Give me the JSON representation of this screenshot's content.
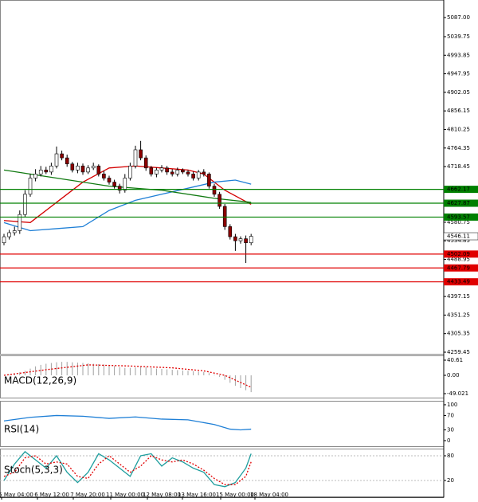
{
  "chart_data": {
    "type": "candlestick",
    "candles": {
      "open": [
        4530,
        4545,
        4555,
        4560,
        4600,
        4650,
        4690,
        4700,
        4710,
        4705,
        4720,
        4750,
        4740,
        4725,
        4710,
        4720,
        4705,
        4715,
        4720,
        4700,
        4690,
        4680,
        4670,
        4660,
        4690,
        4720,
        4760,
        4740,
        4715,
        4700,
        4710,
        4715,
        4705,
        4700,
        4710,
        4705,
        4700,
        4690,
        4705,
        4700,
        4670,
        4650,
        4620,
        4570,
        4545,
        4535,
        4540,
        4530
      ],
      "high": [
        4552,
        4562,
        4570,
        4610,
        4660,
        4700,
        4712,
        4720,
        4718,
        4728,
        4768,
        4758,
        4748,
        4730,
        4728,
        4726,
        4722,
        4728,
        4724,
        4708,
        4696,
        4686,
        4676,
        4700,
        4728,
        4770,
        4782,
        4746,
        4720,
        4716,
        4722,
        4720,
        4712,
        4716,
        4714,
        4710,
        4706,
        4710,
        4712,
        4704,
        4676,
        4656,
        4626,
        4576,
        4552,
        4546,
        4548,
        4552
      ],
      "low": [
        4524,
        4538,
        4548,
        4552,
        4594,
        4644,
        4682,
        4694,
        4700,
        4698,
        4714,
        4734,
        4718,
        4704,
        4702,
        4698,
        4700,
        4710,
        4694,
        4684,
        4674,
        4664,
        4652,
        4654,
        4684,
        4714,
        4734,
        4708,
        4694,
        4692,
        4704,
        4698,
        4694,
        4694,
        4700,
        4694,
        4684,
        4684,
        4694,
        4664,
        4644,
        4614,
        4562,
        4538,
        4510,
        4528,
        4480,
        4524
      ],
      "close": [
        4545,
        4555,
        4560,
        4600,
        4650,
        4690,
        4700,
        4710,
        4705,
        4720,
        4750,
        4740,
        4725,
        4710,
        4720,
        4705,
        4715,
        4720,
        4700,
        4690,
        4680,
        4670,
        4660,
        4690,
        4720,
        4760,
        4740,
        4715,
        4700,
        4710,
        4715,
        4705,
        4700,
        4710,
        4705,
        4700,
        4690,
        4705,
        4700,
        4670,
        4650,
        4620,
        4570,
        4545,
        4535,
        4540,
        4530,
        4546.11
      ],
      "up_color": "#ffffff",
      "down_color": "#8b0000"
    },
    "moving_averages": [
      {
        "color": "#d40000",
        "x": [
          0,
          5,
          10,
          15,
          20,
          25,
          30,
          35,
          38,
          42,
          47
        ],
        "values": [
          4585,
          4580,
          4630,
          4680,
          4715,
          4720,
          4715,
          4710,
          4700,
          4660,
          4625
        ]
      },
      {
        "color": "#1e7fd6",
        "x": [
          0,
          5,
          10,
          15,
          20,
          25,
          30,
          35,
          40,
          44,
          47
        ],
        "values": [
          4580,
          4560,
          4565,
          4570,
          4610,
          4635,
          4650,
          4665,
          4680,
          4685,
          4675
        ]
      },
      {
        "color": "#117a11",
        "x": [
          0,
          10,
          20,
          30,
          40,
          47
        ],
        "values": [
          4710,
          4690,
          4670,
          4660,
          4640,
          4630
        ]
      }
    ],
    "levels": [
      {
        "value": 4662.17,
        "color": "#008000"
      },
      {
        "value": 4627.87,
        "color": "#008000"
      },
      {
        "value": 4593.57,
        "color": "#008000"
      },
      {
        "value": 4502.09,
        "color": "#e00000"
      },
      {
        "value": 4467.79,
        "color": "#e00000"
      },
      {
        "value": 4433.49,
        "color": "#e00000"
      }
    ],
    "current_price": 4546.11,
    "ylim": [
      4255.5,
      5130.4
    ],
    "yticks": [
      {
        "value": 5087,
        "label": "5087.00"
      },
      5039.75,
      4993.85,
      4947.95,
      4902.05,
      4856.15,
      4810.25,
      4764.35,
      4718.45,
      4580.75,
      4534.85,
      4488.95,
      4397.15,
      4351.25,
      4305.35,
      4259.45
    ],
    "x_labels": [
      "5 May 04:00",
      "6 May 12:00",
      "7 May 20:00",
      "11 May 00:00",
      "12 May 08:00",
      "13 May 16:00",
      "15 May 00:00",
      "18 May 04:00"
    ],
    "macd": {
      "title": "MACD(12,26,9)",
      "ylim": [
        -59.7,
        53.4
      ],
      "yticks": [
        40.61,
        {
          "value": 0,
          "label": "0.00"
        },
        -49.021
      ],
      "hist_color": "#a0a0a0",
      "signal_color": "#e00000",
      "histogram": [
        0,
        2,
        5,
        8,
        12,
        18,
        24,
        28,
        31,
        33,
        35,
        36,
        36,
        35,
        34,
        33,
        32,
        31,
        30,
        29,
        27,
        25,
        22,
        20,
        20,
        21,
        23,
        22,
        20,
        18,
        17,
        16,
        15,
        14,
        13,
        12,
        11,
        10,
        9,
        6,
        2,
        -4,
        -12,
        -20,
        -28,
        -34,
        -40,
        -45
      ],
      "signal_x": [
        0,
        8,
        16,
        24,
        32,
        38,
        42,
        47
      ],
      "signal": [
        0,
        15,
        28,
        25,
        20,
        12,
        0,
        -32
      ]
    },
    "rsi": {
      "title": "RSI(14)",
      "ylim": [
        -15.6,
        111
      ],
      "yticks": [
        100,
        70,
        30,
        0
      ],
      "color": "#1e7fd6",
      "x": [
        0,
        5,
        10,
        15,
        20,
        25,
        30,
        35,
        40,
        43,
        45,
        47
      ],
      "values": [
        55,
        65,
        70,
        68,
        62,
        66,
        60,
        58,
        45,
        32,
        30,
        32
      ]
    },
    "stoch": {
      "title": "Stoch(5,3,3)",
      "ylim": [
        -20.6,
        97.4
      ],
      "yticks": [
        80,
        20
      ],
      "k_color": "#1e9e9e",
      "d_color": "#e00000",
      "x": [
        0,
        2,
        4,
        6,
        8,
        10,
        12,
        14,
        16,
        18,
        20,
        22,
        24,
        26,
        28,
        30,
        32,
        34,
        36,
        38,
        40,
        42,
        44,
        46,
        47
      ],
      "k": [
        20,
        60,
        90,
        70,
        50,
        80,
        40,
        15,
        40,
        85,
        70,
        50,
        30,
        80,
        85,
        55,
        75,
        65,
        50,
        40,
        10,
        5,
        15,
        50,
        85
      ],
      "d": [
        30,
        40,
        75,
        80,
        60,
        65,
        60,
        30,
        25,
        60,
        80,
        60,
        40,
        55,
        80,
        70,
        65,
        70,
        60,
        45,
        25,
        10,
        10,
        30,
        65
      ]
    }
  }
}
